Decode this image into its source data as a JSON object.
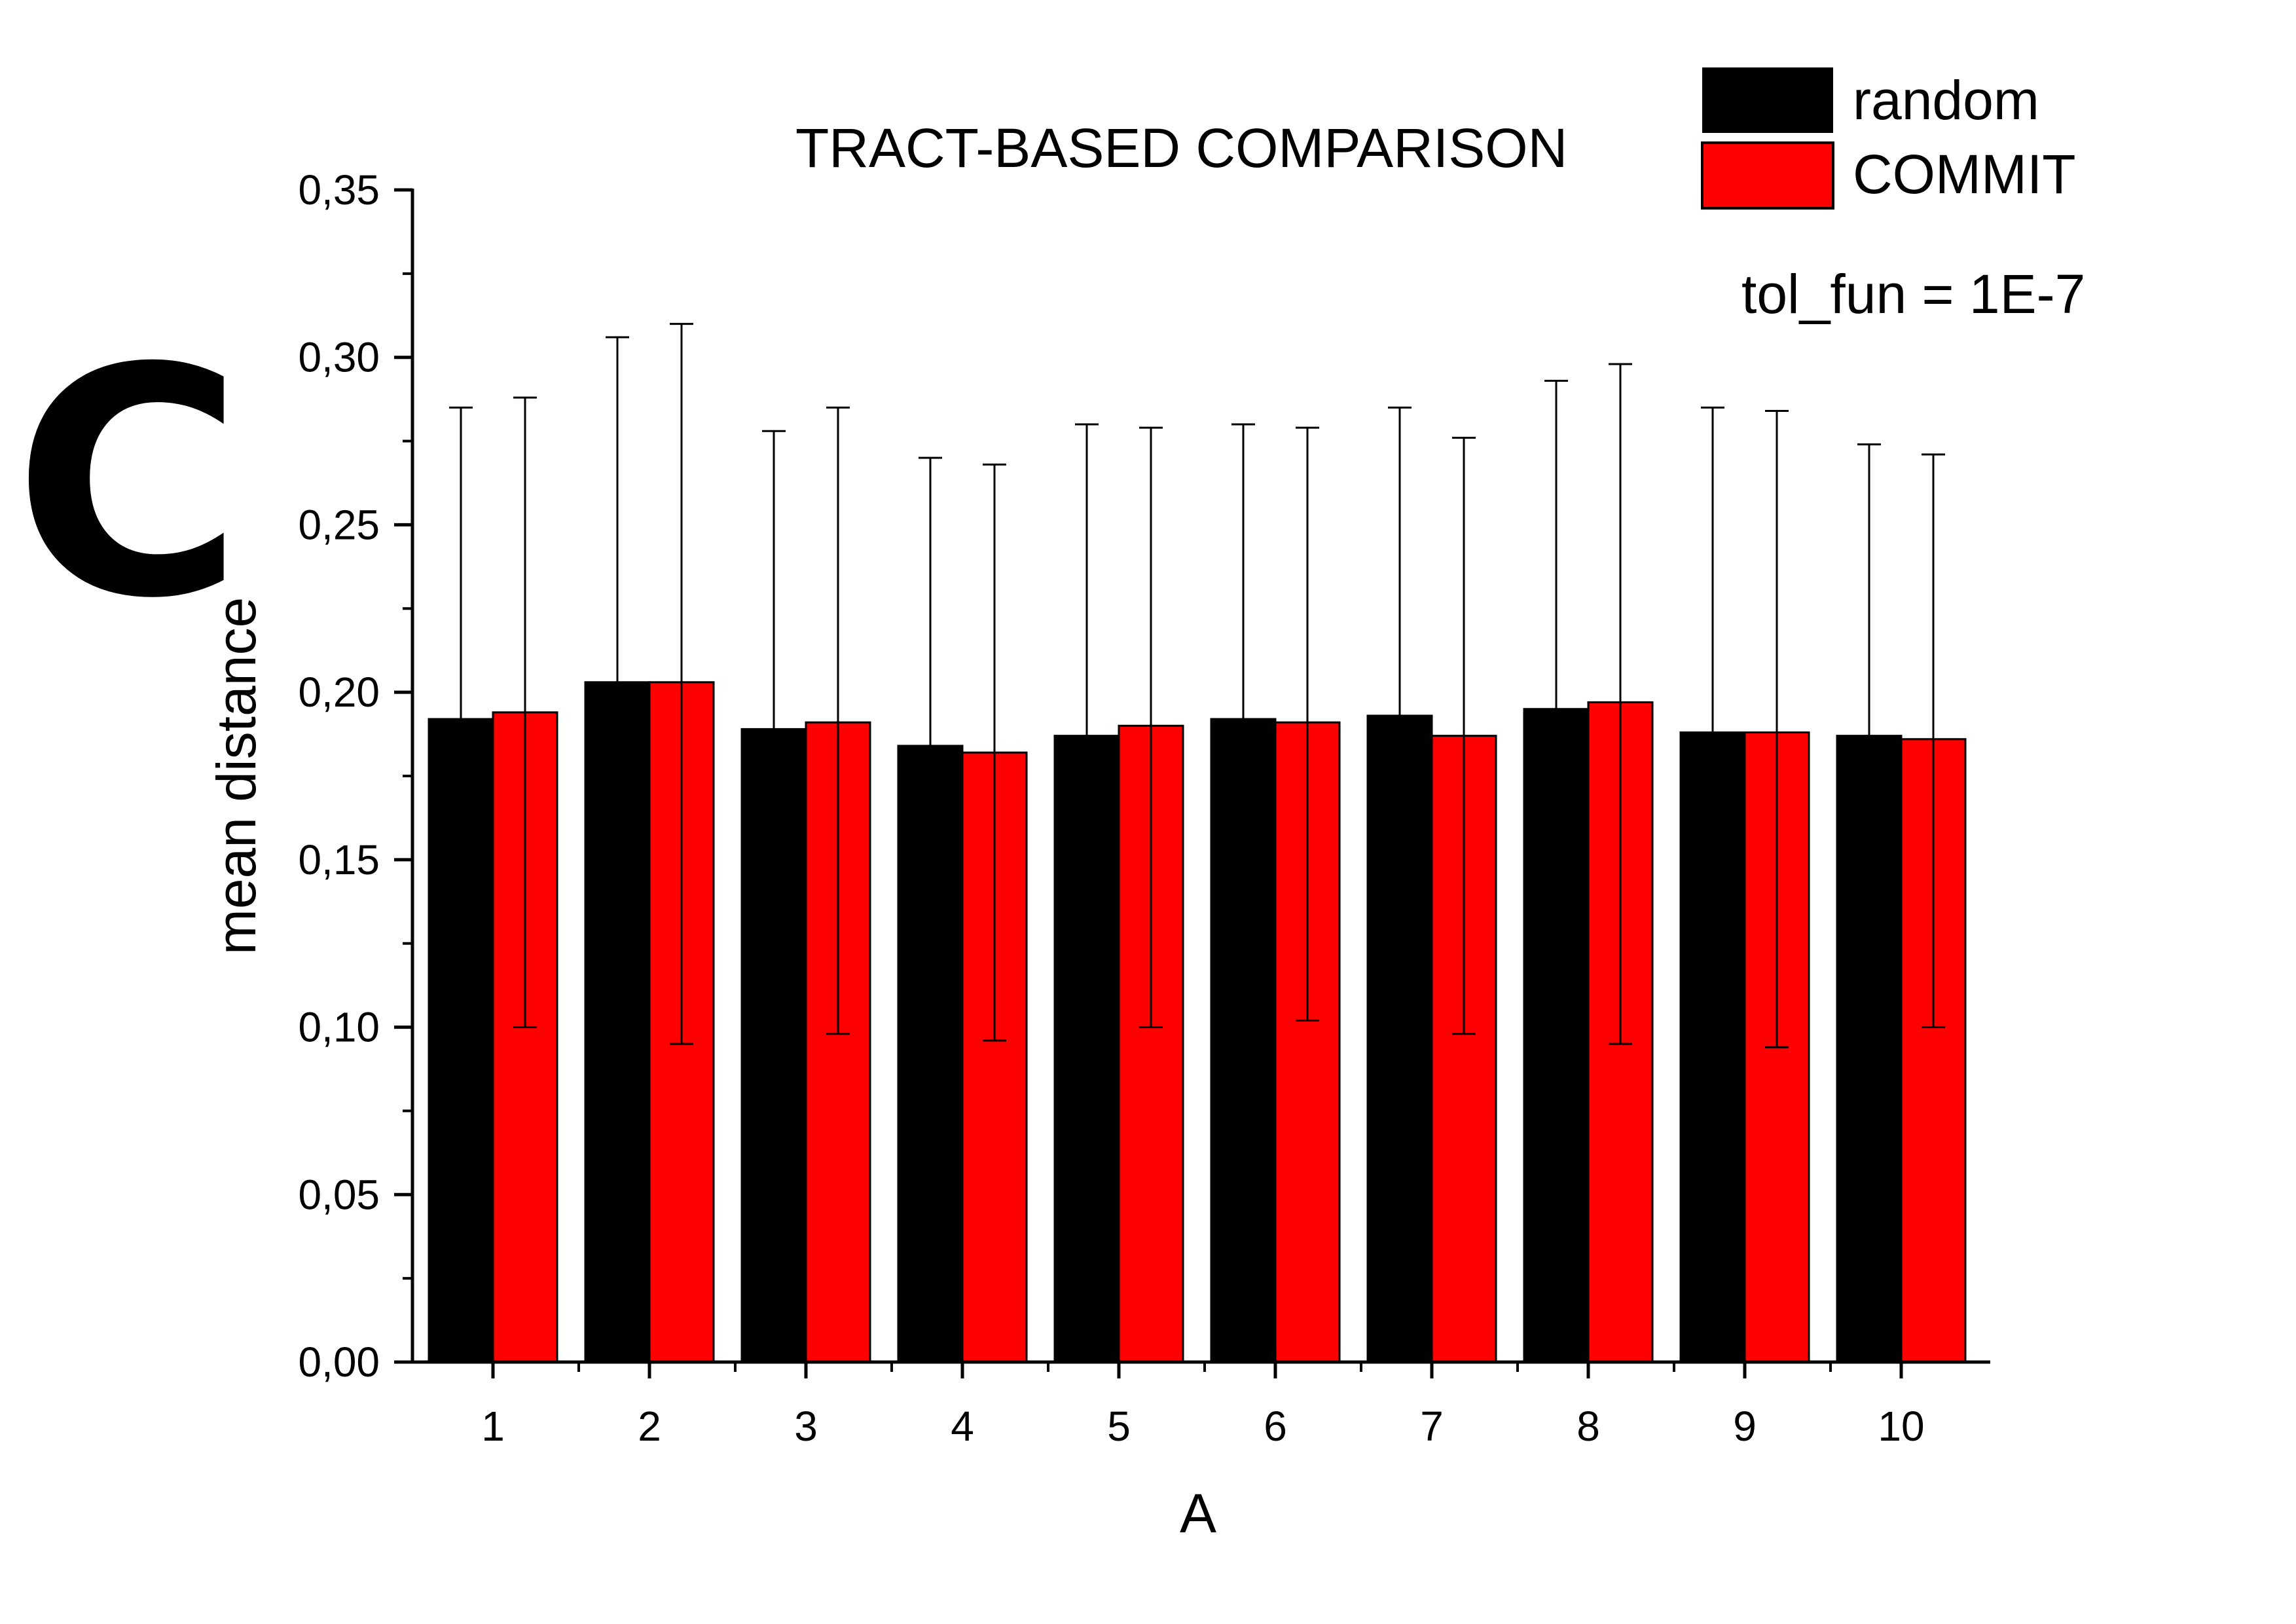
{
  "panel_label": "C",
  "colors": {
    "random": "#000000",
    "COMMIT": "#ff0000",
    "axis": "#000000"
  },
  "chart_data": {
    "type": "bar",
    "title": "TRACT-BASED COMPARISON",
    "annotation": "tol_fun = 1E-7",
    "xlabel": "A",
    "ylabel": "mean distance",
    "ylim": [
      0,
      0.35
    ],
    "yticks": [
      "0,00",
      "0,05",
      "0,10",
      "0,15",
      "0,20",
      "0,25",
      "0,30",
      "0,35"
    ],
    "categories": [
      "1",
      "2",
      "3",
      "4",
      "5",
      "6",
      "7",
      "8",
      "9",
      "10"
    ],
    "legend": {
      "placement": "top-right"
    },
    "series": [
      {
        "name": "random",
        "values": [
          0.192,
          0.203,
          0.189,
          0.184,
          0.187,
          0.192,
          0.193,
          0.195,
          0.188,
          0.187
        ],
        "error_upper": [
          0.285,
          0.306,
          0.278,
          0.27,
          0.28,
          0.28,
          0.285,
          0.293,
          0.285,
          0.274
        ]
      },
      {
        "name": "COMMIT",
        "values": [
          0.194,
          0.203,
          0.191,
          0.182,
          0.19,
          0.191,
          0.187,
          0.197,
          0.188,
          0.186
        ],
        "error_upper": [
          0.288,
          0.31,
          0.285,
          0.268,
          0.279,
          0.279,
          0.276,
          0.298,
          0.284,
          0.271
        ],
        "error_lower": [
          0.1,
          0.095,
          0.098,
          0.096,
          0.1,
          0.102,
          0.098,
          0.095,
          0.094,
          0.1
        ]
      }
    ]
  }
}
